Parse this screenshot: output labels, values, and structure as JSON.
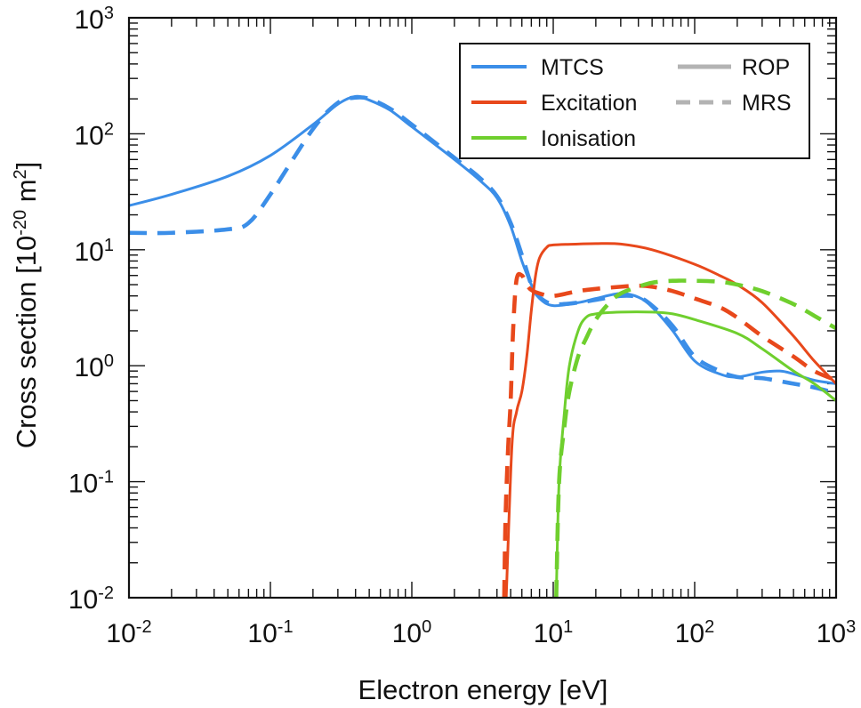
{
  "chart_data": {
    "type": "line",
    "xscale": "log",
    "yscale": "log",
    "xlim": [
      0.01,
      1000
    ],
    "ylim": [
      0.01,
      1000
    ],
    "xlabel": "Electron energy [eV]",
    "ylabel": {
      "prefix": "Cross section [10",
      "exp1": "-20",
      "mid": " m",
      "exp2": "2",
      "suffix": "]"
    },
    "x_ticks": [
      {
        "base": "10",
        "exp": "-2",
        "value": 0.01
      },
      {
        "base": "10",
        "exp": "-1",
        "value": 0.1
      },
      {
        "base": "10",
        "exp": "0",
        "value": 1
      },
      {
        "base": "10",
        "exp": "1",
        "value": 10
      },
      {
        "base": "10",
        "exp": "2",
        "value": 100
      },
      {
        "base": "10",
        "exp": "3",
        "value": 1000
      }
    ],
    "y_ticks": [
      {
        "base": "10",
        "exp": "-2",
        "value": 0.01
      },
      {
        "base": "10",
        "exp": "-1",
        "value": 0.1
      },
      {
        "base": "10",
        "exp": "0",
        "value": 1
      },
      {
        "base": "10",
        "exp": "1",
        "value": 10
      },
      {
        "base": "10",
        "exp": "2",
        "value": 100
      },
      {
        "base": "10",
        "exp": "3",
        "value": 1000
      }
    ],
    "legend": {
      "placement": "top-right",
      "colors": [
        {
          "label": "MTCS",
          "color": "#3b8ee8"
        },
        {
          "label": "Excitation",
          "color": "#e8481b"
        },
        {
          "label": "Ionisation",
          "color": "#6fcf2e"
        }
      ],
      "styles": [
        {
          "label": "ROP",
          "dash": "solid",
          "color": "#b3b3b3"
        },
        {
          "label": "MRS",
          "dash": "dashed",
          "color": "#b3b3b3"
        }
      ]
    },
    "series": [
      {
        "name": "MTCS ROP",
        "quantity": "MTCS",
        "method": "ROP",
        "color": "#3b8ee8",
        "dash": "solid",
        "points": [
          [
            0.01,
            24
          ],
          [
            0.02,
            30
          ],
          [
            0.05,
            43
          ],
          [
            0.1,
            65
          ],
          [
            0.2,
            120
          ],
          [
            0.3,
            180
          ],
          [
            0.4,
            210
          ],
          [
            0.5,
            195
          ],
          [
            0.7,
            160
          ],
          [
            1,
            115
          ],
          [
            2,
            60
          ],
          [
            3,
            40
          ],
          [
            4,
            28
          ],
          [
            5,
            16
          ],
          [
            6,
            8
          ],
          [
            7,
            5
          ],
          [
            8,
            3.8
          ],
          [
            10,
            3.3
          ],
          [
            15,
            3.5
          ],
          [
            20,
            3.8
          ],
          [
            30,
            4.2
          ],
          [
            40,
            3.9
          ],
          [
            50,
            3.2
          ],
          [
            70,
            2
          ],
          [
            100,
            1.1
          ],
          [
            150,
            0.85
          ],
          [
            200,
            0.8
          ],
          [
            300,
            0.88
          ],
          [
            400,
            0.9
          ],
          [
            500,
            0.85
          ],
          [
            700,
            0.75
          ],
          [
            1000,
            0.7
          ]
        ]
      },
      {
        "name": "MTCS MRS",
        "quantity": "MTCS",
        "method": "MRS",
        "color": "#3b8ee8",
        "dash": "dashed",
        "points": [
          [
            0.01,
            14
          ],
          [
            0.02,
            14
          ],
          [
            0.05,
            15
          ],
          [
            0.07,
            17
          ],
          [
            0.1,
            30
          ],
          [
            0.2,
            110
          ],
          [
            0.3,
            185
          ],
          [
            0.4,
            205
          ],
          [
            0.5,
            200
          ],
          [
            0.7,
            165
          ],
          [
            1,
            120
          ],
          [
            2,
            62
          ],
          [
            3,
            42
          ],
          [
            4,
            29
          ],
          [
            5,
            17
          ],
          [
            6,
            9
          ],
          [
            7,
            5
          ],
          [
            8,
            3.9
          ],
          [
            10,
            3.4
          ],
          [
            15,
            3.5
          ],
          [
            20,
            3.7
          ],
          [
            30,
            4
          ],
          [
            40,
            3.9
          ],
          [
            50,
            3.3
          ],
          [
            70,
            2.2
          ],
          [
            100,
            1.2
          ],
          [
            150,
            0.9
          ],
          [
            200,
            0.8
          ],
          [
            300,
            0.78
          ],
          [
            500,
            0.7
          ],
          [
            700,
            0.65
          ],
          [
            1000,
            0.58
          ]
        ]
      },
      {
        "name": "Excitation ROP",
        "quantity": "Excitation",
        "method": "ROP",
        "color": "#e8481b",
        "dash": "solid",
        "points": [
          [
            4.65,
            0.01
          ],
          [
            5.1,
            0.2
          ],
          [
            5.5,
            0.4
          ],
          [
            6,
            0.6
          ],
          [
            6.5,
            1.2
          ],
          [
            7,
            3
          ],
          [
            7.5,
            6
          ],
          [
            8,
            8.5
          ],
          [
            9,
            10.5
          ],
          [
            10,
            11
          ],
          [
            15,
            11.2
          ],
          [
            20,
            11.3
          ],
          [
            30,
            11.2
          ],
          [
            50,
            10
          ],
          [
            100,
            7.5
          ],
          [
            150,
            6
          ],
          [
            200,
            5
          ],
          [
            300,
            3.5
          ],
          [
            500,
            1.8
          ],
          [
            700,
            1.1
          ],
          [
            1000,
            0.7
          ]
        ]
      },
      {
        "name": "Excitation MRS",
        "quantity": "Excitation",
        "method": "MRS",
        "color": "#e8481b",
        "dash": "dashed",
        "points": [
          [
            4.5,
            0.01
          ],
          [
            4.6,
            0.05
          ],
          [
            4.8,
            0.2
          ],
          [
            5,
            0.5
          ],
          [
            5.2,
            2
          ],
          [
            5.5,
            5.5
          ],
          [
            6,
            6
          ],
          [
            6.5,
            5
          ],
          [
            7,
            4.5
          ],
          [
            8,
            4.2
          ],
          [
            10,
            4
          ],
          [
            15,
            4.4
          ],
          [
            20,
            4.6
          ],
          [
            30,
            4.8
          ],
          [
            40,
            4.9
          ],
          [
            50,
            4.8
          ],
          [
            70,
            4.4
          ],
          [
            100,
            3.8
          ],
          [
            150,
            3.2
          ],
          [
            200,
            2.6
          ],
          [
            300,
            1.8
          ],
          [
            500,
            1.2
          ],
          [
            700,
            0.9
          ],
          [
            1000,
            0.75
          ]
        ]
      },
      {
        "name": "Ionisation ROP",
        "quantity": "Ionisation",
        "method": "ROP",
        "color": "#6fcf2e",
        "dash": "solid",
        "points": [
          [
            10.5,
            0.01
          ],
          [
            11,
            0.1
          ],
          [
            12,
            0.4
          ],
          [
            13,
            1
          ],
          [
            15,
            2
          ],
          [
            17,
            2.6
          ],
          [
            20,
            2.8
          ],
          [
            30,
            2.9
          ],
          [
            50,
            2.9
          ],
          [
            70,
            2.8
          ],
          [
            100,
            2.5
          ],
          [
            200,
            1.9
          ],
          [
            300,
            1.4
          ],
          [
            500,
            0.9
          ],
          [
            700,
            0.7
          ],
          [
            1000,
            0.5
          ]
        ]
      },
      {
        "name": "Ionisation MRS",
        "quantity": "Ionisation",
        "method": "MRS",
        "color": "#6fcf2e",
        "dash": "dashed",
        "points": [
          [
            10.5,
            0.01
          ],
          [
            11,
            0.1
          ],
          [
            12,
            0.3
          ],
          [
            13,
            0.6
          ],
          [
            15,
            1.2
          ],
          [
            17,
            1.7
          ],
          [
            20,
            2.5
          ],
          [
            25,
            3.5
          ],
          [
            30,
            4.2
          ],
          [
            40,
            4.8
          ],
          [
            50,
            5.2
          ],
          [
            70,
            5.4
          ],
          [
            100,
            5.4
          ],
          [
            150,
            5.3
          ],
          [
            200,
            5
          ],
          [
            300,
            4.4
          ],
          [
            500,
            3.4
          ],
          [
            700,
            2.7
          ],
          [
            1000,
            2.1
          ]
        ]
      }
    ]
  }
}
